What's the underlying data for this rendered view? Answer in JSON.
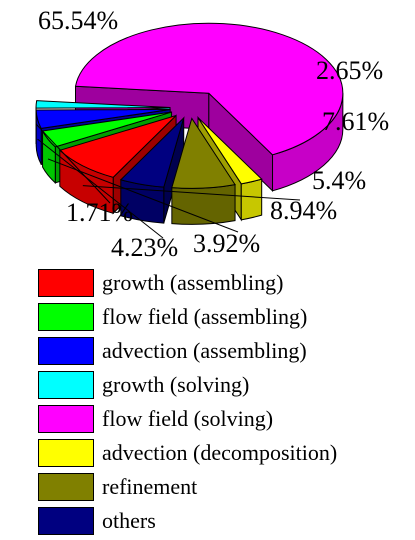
{
  "chart_data": {
    "type": "pie",
    "title": "",
    "legend_position": "bottom",
    "style": "3d-exploded",
    "slices": [
      {
        "name": "growth (assembling)",
        "value": 8.94,
        "label": "8.94%",
        "color": "#ff0000"
      },
      {
        "name": "flow field (assembling)",
        "value": 3.92,
        "label": "3.92%",
        "color": "#00ff00"
      },
      {
        "name": "advection (assembling)",
        "value": 4.23,
        "label": "4.23%",
        "color": "#0000ff"
      },
      {
        "name": "growth (solving)",
        "value": 1.71,
        "label": "1.71%",
        "color": "#00ffff"
      },
      {
        "name": "flow field (solving)",
        "value": 65.54,
        "label": "65.54%",
        "color": "#ff00ff"
      },
      {
        "name": "advection (decomposition)",
        "value": 2.65,
        "label": "2.65%",
        "color": "#ffff00"
      },
      {
        "name": "refinement",
        "value": 7.61,
        "label": "7.61%",
        "color": "#808000"
      },
      {
        "name": "others",
        "value": 5.4,
        "label": "5.4%",
        "color": "#000080"
      }
    ]
  }
}
